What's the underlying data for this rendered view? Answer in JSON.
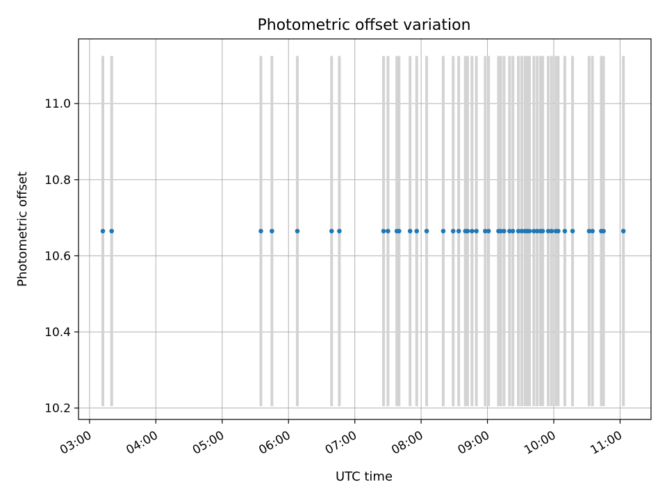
{
  "chart_data": {
    "type": "scatter",
    "title": "Photometric offset variation",
    "xlabel": "UTC time",
    "ylabel": "Photometric offset",
    "x_ticks": [
      "03:00",
      "04:00",
      "05:00",
      "06:00",
      "07:00",
      "08:00",
      "09:00",
      "10:00",
      "11:00"
    ],
    "x_range": [
      "02:50",
      "11:28"
    ],
    "y_ticks": [
      "10.2",
      "10.4",
      "10.6",
      "10.8",
      "11.0"
    ],
    "ylim": [
      10.17,
      11.17
    ],
    "grid": true,
    "series": [
      {
        "y_value": 10.665,
        "y_error": 0.46,
        "error_color": "#d3d3d3",
        "point_color": "#1f77b4",
        "x": [
          "03:12",
          "03:20",
          "05:35",
          "05:45",
          "06:08",
          "06:39",
          "06:46",
          "07:26",
          "07:30",
          "07:38",
          "07:40",
          "07:50",
          "07:56",
          "08:05",
          "08:20",
          "08:29",
          "08:34",
          "08:40",
          "08:42",
          "08:46",
          "08:50",
          "08:58",
          "09:01",
          "09:10",
          "09:12",
          "09:15",
          "09:20",
          "09:23",
          "09:28",
          "09:31",
          "09:34",
          "09:36",
          "09:38",
          "09:42",
          "09:45",
          "09:48",
          "09:50",
          "09:55",
          "09:58",
          "10:02",
          "10:04",
          "10:10",
          "10:17",
          "10:32",
          "10:35",
          "10:43",
          "10:45",
          "11:03"
        ]
      }
    ]
  }
}
